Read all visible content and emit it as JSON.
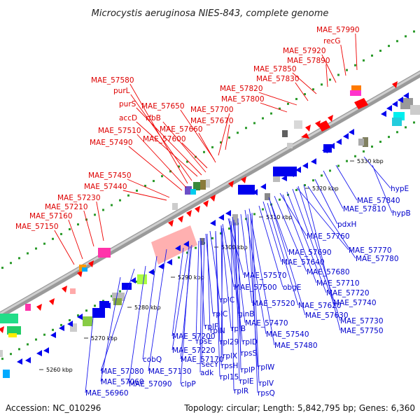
{
  "title": "Microcystis aeruginosa NIES-843, complete genome",
  "footer": {
    "accession": "Accession: NC_010296",
    "summary": "Topology: circular; Length: 5,842,795 bp; Genes: 6,360"
  },
  "colors": {
    "forward_gene": "#dd0000",
    "reverse_gene": "#0000cc",
    "backbone": "#9a9a9a",
    "dotted_track": "#2a9a2a"
  },
  "kbp_ticks": [
    "5260 kbp",
    "5270 kbp",
    "5280 kbp",
    "5290 kbp",
    "5300 kbp",
    "5310 kbp",
    "5320 kbp",
    "5330 kbp"
  ],
  "forward_labels": [
    "MAE_57990",
    "recG",
    "MAE_57920",
    "MAE_57890",
    "MAE_57850",
    "MAE_57830",
    "MAE_57820",
    "MAE_57800",
    "MAE_57580",
    "purL",
    "MAE_57650",
    "purS",
    "rfbB",
    "MAE_57700",
    "accD",
    "MAE_57670",
    "MAE_57660",
    "MAE_57510",
    "MAE_57600",
    "MAE_57490",
    "MAE_57450",
    "MAE_57440",
    "MAE_57230",
    "MAE_57210",
    "MAE_57160",
    "MAE_57150"
  ],
  "reverse_labels": [
    "hypE",
    "MAE_57840",
    "MAE_57810",
    "hypB",
    "pdxH",
    "MAE_57760",
    "MAE_57770",
    "MAE_57690",
    "MAE_57780",
    "MAE_57640",
    "MAE_57680",
    "MAE_57570",
    "obgE",
    "MAE_57710",
    "MAE_57500",
    "MAE_57720",
    "rplC",
    "MAE_57520",
    "MAE_57620",
    "MAE_57740",
    "rplC",
    "glnB",
    "MAE_57630",
    "MAE_57470",
    "MAE_57730",
    "rplB",
    "MAE_57540",
    "MAE_57750",
    "rplF",
    "rplN",
    "rplD",
    "MAE_57480",
    "MAE_57200",
    "rpsE",
    "rpl29",
    "MAE_57220",
    "rplX",
    "rpsS",
    "MAE_57170",
    "secY",
    "rpsH",
    "rplP",
    "rplW",
    "adk",
    "rpl15",
    "rplE",
    "rplV",
    "rplR",
    "rpsQ",
    "cobQ",
    "MAE_57130",
    "clpP",
    "MAE_57080",
    "MAE_57060",
    "MAE_57090",
    "MAE_56960"
  ]
}
